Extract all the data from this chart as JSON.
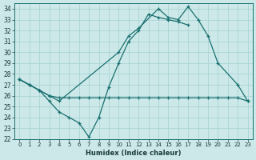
{
  "xlabel": "Humidex (Indice chaleur)",
  "background_color": "#cce8e8",
  "grid_color": "#aad4d4",
  "line_color": "#1a7070",
  "xlim": [
    -0.5,
    23.5
  ],
  "ylim": [
    22,
    34.5
  ],
  "yticks": [
    22,
    23,
    24,
    25,
    26,
    27,
    28,
    29,
    30,
    31,
    32,
    33,
    34
  ],
  "xticks": [
    0,
    1,
    2,
    3,
    4,
    5,
    6,
    7,
    8,
    9,
    10,
    11,
    12,
    13,
    14,
    15,
    16,
    17,
    18,
    19,
    20,
    21,
    22,
    23
  ],
  "line1_x": [
    0,
    1,
    2,
    3,
    4,
    5,
    6,
    7,
    8,
    9,
    10,
    11,
    12,
    13,
    14,
    15,
    16,
    17,
    18,
    19,
    20,
    21,
    22,
    23
  ],
  "line1_y": [
    27.5,
    27.0,
    26.5,
    26.0,
    25.8,
    25.8,
    25.8,
    25.8,
    25.8,
    25.8,
    25.8,
    25.8,
    25.8,
    25.8,
    25.8,
    25.8,
    25.8,
    25.8,
    25.8,
    25.8,
    25.8,
    25.8,
    25.8,
    25.5
  ],
  "line2_x": [
    0,
    1,
    2,
    3,
    4,
    5,
    6,
    7,
    8,
    9,
    10,
    11,
    12,
    13,
    14,
    15,
    16,
    17
  ],
  "line2_y": [
    27.5,
    27.0,
    26.5,
    25.5,
    24.5,
    24.0,
    23.5,
    22.2,
    24.0,
    26.8,
    29.0,
    31.0,
    32.0,
    33.5,
    33.2,
    33.0,
    32.8,
    32.5
  ],
  "line3_x": [
    0,
    1,
    2,
    3,
    4,
    10,
    11,
    12,
    14,
    15,
    16,
    17,
    18,
    19,
    20,
    22,
    23
  ],
  "line3_y": [
    27.5,
    27.0,
    26.5,
    26.0,
    25.5,
    30.0,
    31.5,
    32.2,
    34.0,
    33.2,
    33.0,
    34.2,
    33.0,
    31.5,
    29.0,
    27.0,
    25.5
  ]
}
